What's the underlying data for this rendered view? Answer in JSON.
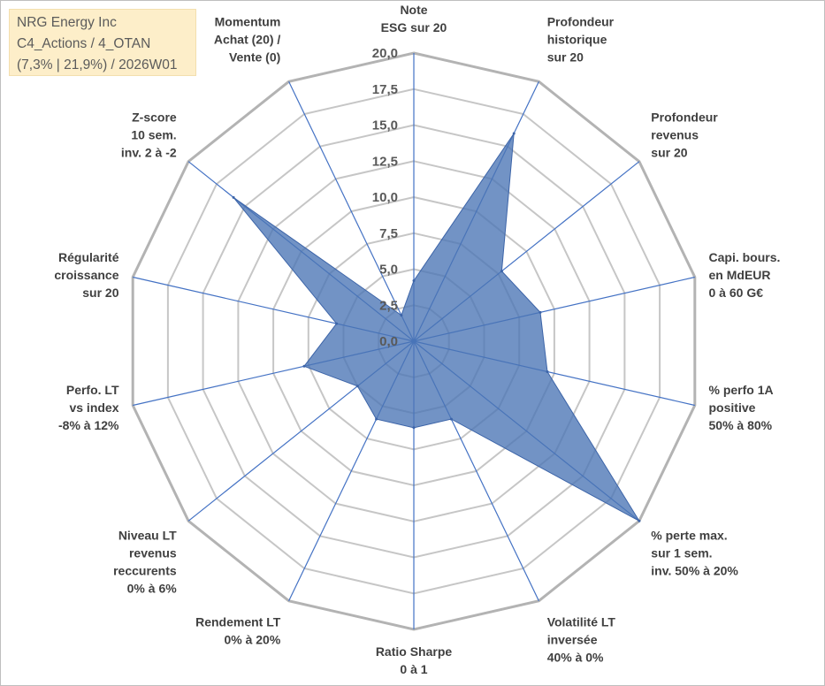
{
  "chart_data": {
    "type": "radar",
    "title_lines": [
      "NRG Energy Inc",
      "C4_Actions / 4_OTAN",
      "(7,3% | 21,9%) / 2026W01"
    ],
    "rmin": 0,
    "rmax": 20,
    "ticks": [
      "0,0",
      "2,5",
      "5,0",
      "7,5",
      "10,0",
      "12,5",
      "15,0",
      "17,5",
      "20,0"
    ],
    "axes": [
      {
        "lines": [
          "Note",
          "ESG sur 20"
        ],
        "value": 4.2
      },
      {
        "lines": [
          "Profondeur",
          "historique",
          "sur 20"
        ],
        "value": 16.0
      },
      {
        "lines": [
          "Profondeur",
          "revenus",
          "sur 20"
        ],
        "value": 7.8
      },
      {
        "lines": [
          "Capi. bours.",
          "en MdEUR",
          "0 à 60 G€"
        ],
        "value": 9.0
      },
      {
        "lines": [
          "% perfo 1A",
          "positive",
          "50% à 80%"
        ],
        "value": 9.5
      },
      {
        "lines": [
          "% perte max.",
          "sur 1 sem.",
          "inv. 50% à 20%"
        ],
        "value": 20.0
      },
      {
        "lines": [
          "Volatilité LT",
          "inversée",
          "40% à 0%"
        ],
        "value": 6.0
      },
      {
        "lines": [
          "Ratio Sharpe",
          "0 à 1"
        ],
        "value": 6.0
      },
      {
        "lines": [
          "Rendement LT",
          "0% à 20%"
        ],
        "value": 6.0
      },
      {
        "lines": [
          "Niveau LT",
          "revenus",
          "reccurents",
          "0% à 6%"
        ],
        "value": 5.0
      },
      {
        "lines": [
          "Perfo. LT",
          "vs index",
          "-8% à 12%"
        ],
        "value": 7.8
      },
      {
        "lines": [
          "Régularité",
          "croissance",
          "sur 20"
        ],
        "value": 5.5
      },
      {
        "lines": [
          "Z-score",
          "10 sem.",
          "inv. 2 à -2"
        ],
        "value": 16.0
      },
      {
        "lines": [
          "Momentum",
          "Achat (20) /",
          "Vente (0)"
        ],
        "value": 2.0
      }
    ],
    "colors": {
      "fill": "#4a75b5",
      "stroke": "#3c64a8",
      "grid": "#c6c6c6",
      "spoke": "#4472c4",
      "title_bg": "#fdeec9"
    }
  }
}
